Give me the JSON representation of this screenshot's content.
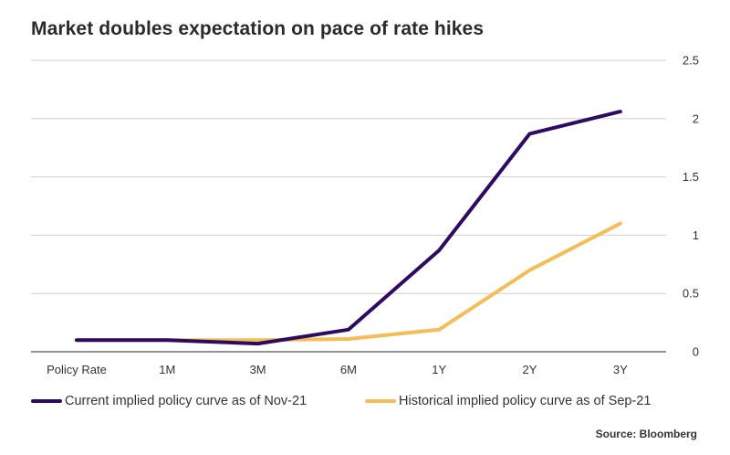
{
  "chart_data": {
    "type": "line",
    "title": "Market doubles expectation on pace of rate hikes",
    "categories": [
      "Policy Rate",
      "1M",
      "3M",
      "6M",
      "1Y",
      "2Y",
      "3Y"
    ],
    "series": [
      {
        "name": "Current implied policy curve as of Nov-21",
        "color": "#2e0b62",
        "values": [
          0.1,
          0.1,
          0.07,
          0.19,
          0.87,
          1.87,
          2.06
        ]
      },
      {
        "name": "Historical implied policy curve as of Sep-21",
        "color": "#f5bd57",
        "values": [
          0.1,
          0.1,
          0.1,
          0.11,
          0.19,
          0.7,
          1.1
        ]
      }
    ],
    "yticks": [
      "2.5",
      "2",
      "1.5",
      "1",
      "0.5",
      "0"
    ],
    "ylim": [
      0,
      2.5
    ],
    "y_axis_position": "right",
    "grid": true,
    "legend_position": "bottom",
    "source": "Source: Bloomberg"
  }
}
